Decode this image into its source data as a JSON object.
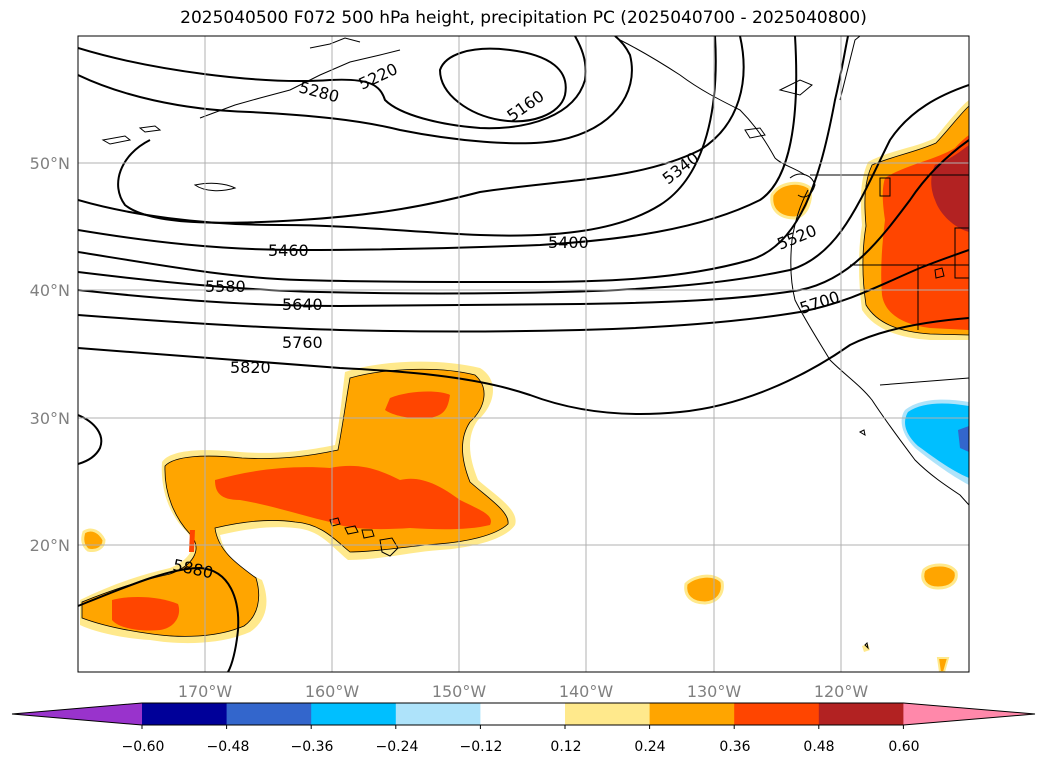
{
  "title": "2025040500 F072 500 hPa height, precipitation PC (2025040700 - 2025040800)",
  "lat_labels": [
    "50°N",
    "40°N",
    "30°N",
    "20°N"
  ],
  "lon_labels": [
    "170°W",
    "160°W",
    "150°W",
    "140°W",
    "130°W",
    "120°W"
  ],
  "contour_labels": [
    "5160",
    "5220",
    "5280",
    "5340",
    "5400",
    "5460",
    "5520",
    "5580",
    "5640",
    "5700",
    "5760",
    "5820",
    "5880"
  ],
  "colorbar": {
    "ticks": [
      "−0.60",
      "−0.48",
      "−0.36",
      "−0.24",
      "−0.12",
      "0.12",
      "0.24",
      "0.36",
      "0.48",
      "0.60"
    ],
    "colors": [
      "#9933cc",
      "#000099",
      "#3366cc",
      "#00bfff",
      "#aee3fa",
      "#ffffff",
      "#ffe98c",
      "#ffa500",
      "#ff4500",
      "#b22222",
      "#ff88aa"
    ]
  },
  "colors": {
    "orange": "#ffa500",
    "red_orange": "#ff4500",
    "dark_red": "#b22222",
    "light_yellow": "#ffe98c",
    "sky_blue": "#00bfff",
    "blue": "#3366cc",
    "grid": "#b0b0b0"
  }
}
